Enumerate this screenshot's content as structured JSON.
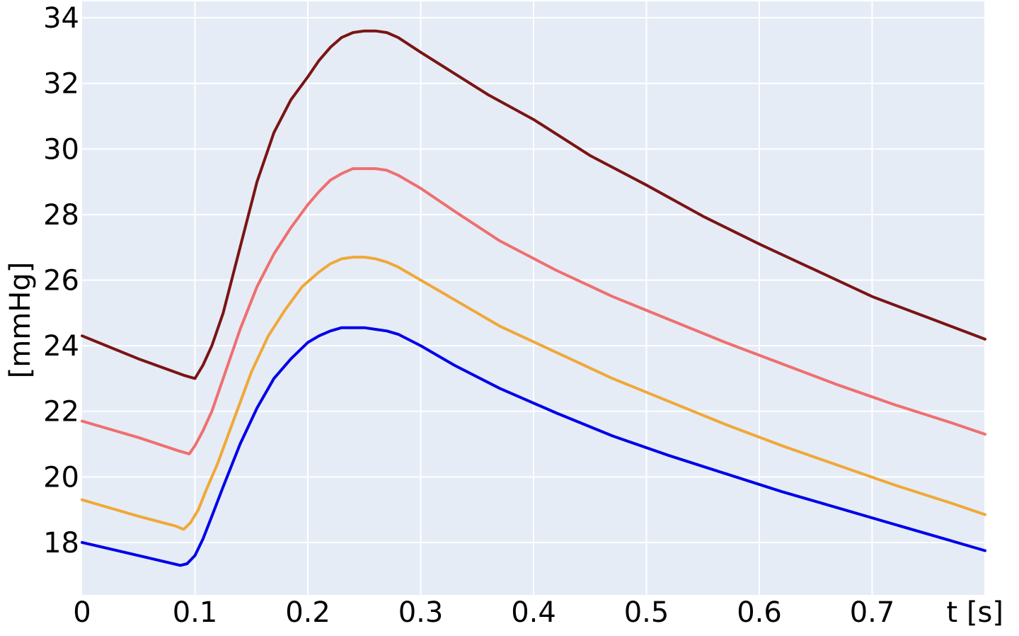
{
  "chart_data": {
    "type": "line",
    "title": "",
    "xlabel": "t [s]",
    "ylabel": "[mmHg]",
    "xlim": [
      0,
      0.8
    ],
    "ylim": [
      16.4,
      34.5
    ],
    "xticks": [
      0,
      0.1,
      0.2,
      0.3,
      0.4,
      0.5,
      0.6,
      0.7
    ],
    "xtick_labels": [
      "0",
      "0.1",
      "0.2",
      "0.3",
      "0.4",
      "0.5",
      "0.6",
      "0.7"
    ],
    "yticks": [
      18,
      20,
      22,
      24,
      26,
      28,
      30,
      32,
      34
    ],
    "ytick_labels": [
      "18",
      "20",
      "22",
      "24",
      "26",
      "28",
      "30",
      "32",
      "34"
    ],
    "grid": true,
    "background": "#e5ecf6",
    "series": [
      {
        "color": "#7a1414",
        "x": [
          0,
          0.05,
          0.09,
          0.1,
          0.107,
          0.115,
          0.125,
          0.14,
          0.155,
          0.17,
          0.185,
          0.2,
          0.21,
          0.22,
          0.23,
          0.24,
          0.25,
          0.26,
          0.27,
          0.28,
          0.3,
          0.33,
          0.36,
          0.4,
          0.45,
          0.5,
          0.55,
          0.6,
          0.65,
          0.7,
          0.75,
          0.8
        ],
        "y": [
          24.3,
          23.6,
          23.1,
          23.0,
          23.4,
          24.0,
          25.0,
          27.0,
          29.0,
          30.5,
          31.5,
          32.2,
          32.7,
          33.1,
          33.4,
          33.55,
          33.6,
          33.6,
          33.55,
          33.4,
          32.95,
          32.3,
          31.65,
          30.9,
          29.8,
          28.9,
          27.95,
          27.1,
          26.3,
          25.5,
          24.85,
          24.2
        ]
      },
      {
        "color": "#ef6f6f",
        "x": [
          0,
          0.05,
          0.085,
          0.095,
          0.1,
          0.107,
          0.115,
          0.125,
          0.14,
          0.155,
          0.17,
          0.185,
          0.2,
          0.21,
          0.22,
          0.23,
          0.24,
          0.25,
          0.26,
          0.27,
          0.28,
          0.3,
          0.33,
          0.37,
          0.42,
          0.47,
          0.52,
          0.57,
          0.62,
          0.67,
          0.72,
          0.77,
          0.8
        ],
        "y": [
          21.7,
          21.2,
          20.8,
          20.7,
          20.95,
          21.4,
          22.0,
          23.0,
          24.5,
          25.8,
          26.8,
          27.6,
          28.3,
          28.7,
          29.05,
          29.25,
          29.4,
          29.4,
          29.4,
          29.35,
          29.2,
          28.8,
          28.1,
          27.2,
          26.3,
          25.5,
          24.8,
          24.1,
          23.45,
          22.8,
          22.2,
          21.65,
          21.3
        ]
      },
      {
        "color": "#f0a838",
        "x": [
          0,
          0.05,
          0.083,
          0.09,
          0.096,
          0.103,
          0.11,
          0.12,
          0.135,
          0.15,
          0.165,
          0.18,
          0.195,
          0.21,
          0.22,
          0.23,
          0.24,
          0.25,
          0.26,
          0.27,
          0.28,
          0.3,
          0.33,
          0.37,
          0.42,
          0.47,
          0.52,
          0.57,
          0.62,
          0.67,
          0.72,
          0.77,
          0.8
        ],
        "y": [
          19.3,
          18.8,
          18.5,
          18.4,
          18.6,
          19.0,
          19.6,
          20.4,
          21.8,
          23.2,
          24.3,
          25.1,
          25.8,
          26.25,
          26.5,
          26.65,
          26.7,
          26.7,
          26.65,
          26.55,
          26.4,
          26.0,
          25.4,
          24.6,
          23.8,
          23.0,
          22.3,
          21.6,
          20.95,
          20.35,
          19.75,
          19.2,
          18.85
        ]
      },
      {
        "color": "#0000e8",
        "x": [
          0,
          0.05,
          0.087,
          0.093,
          0.1,
          0.107,
          0.115,
          0.125,
          0.14,
          0.155,
          0.17,
          0.185,
          0.2,
          0.21,
          0.22,
          0.23,
          0.24,
          0.25,
          0.26,
          0.27,
          0.28,
          0.3,
          0.33,
          0.37,
          0.42,
          0.47,
          0.52,
          0.57,
          0.62,
          0.67,
          0.72,
          0.77,
          0.8
        ],
        "y": [
          18.0,
          17.6,
          17.3,
          17.35,
          17.6,
          18.1,
          18.8,
          19.7,
          21.0,
          22.1,
          23.0,
          23.6,
          24.1,
          24.3,
          24.45,
          24.55,
          24.55,
          24.55,
          24.5,
          24.45,
          24.35,
          24.0,
          23.4,
          22.7,
          21.95,
          21.25,
          20.65,
          20.1,
          19.55,
          19.05,
          18.55,
          18.05,
          17.75
        ]
      }
    ]
  }
}
